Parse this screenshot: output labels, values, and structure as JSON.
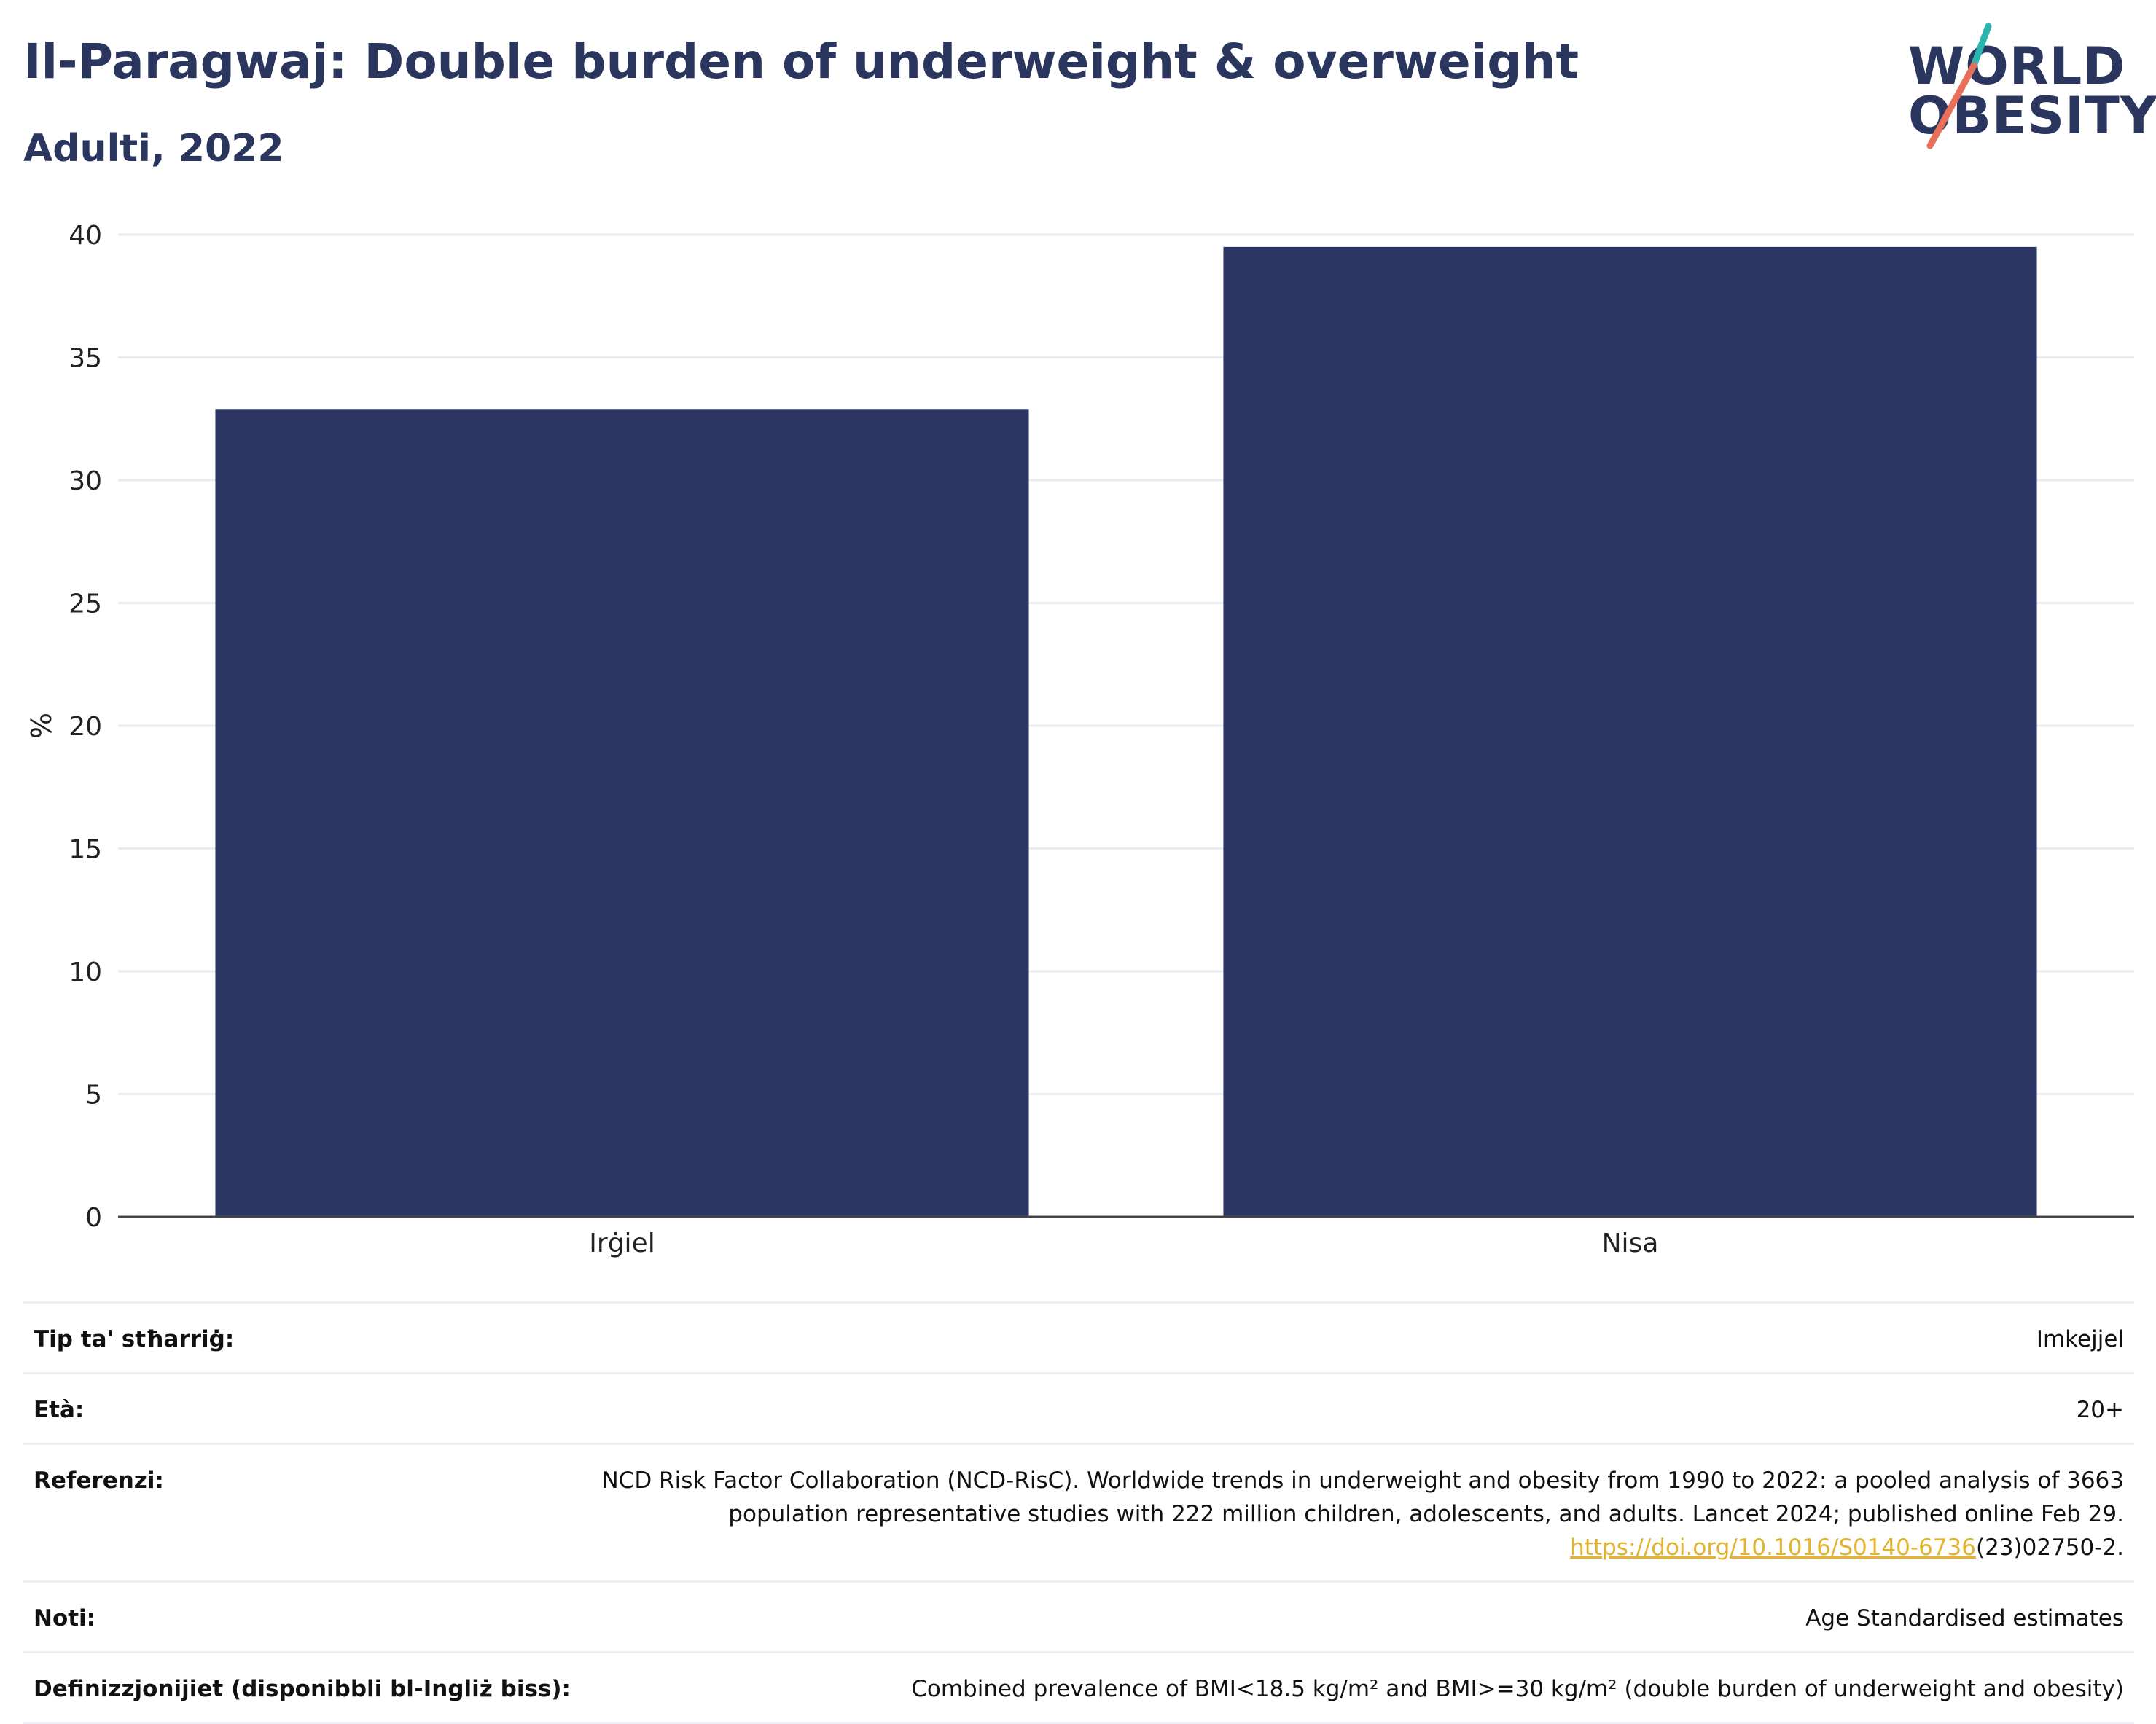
{
  "header": {
    "title": "Il-Paragwaj: Double burden of underweight & overweight",
    "subtitle": "Adulti, 2022"
  },
  "logo": {
    "line1": "WORLD",
    "line2": "OBESITY",
    "stroke_colors": [
      "#2cb5b0",
      "#e8705a"
    ]
  },
  "chart_data": {
    "type": "bar",
    "categories": [
      "Irġiel",
      "Nisa"
    ],
    "values": [
      32.9,
      39.5
    ],
    "ylabel": "%",
    "ylim": [
      0,
      40
    ],
    "yticks": [
      0,
      5,
      10,
      15,
      20,
      25,
      30,
      35,
      40
    ],
    "grid": true,
    "bar_color": "#2b3663"
  },
  "metadata": {
    "rows": [
      {
        "label": "Tip ta' stħarriġ:",
        "value": "Imkejjel"
      },
      {
        "label": "Età:",
        "value": "20+"
      },
      {
        "label": "Referenzi:",
        "value": "NCD Risk Factor Collaboration (NCD-RisC). Worldwide trends in underweight and obesity from 1990 to 2022: a pooled analysis of 3663 population representative studies with 222 million children, adolescents, and adults. Lancet 2024; published online Feb 29.",
        "link": "https://doi.org/10.1016/S0140-6736",
        "link_suffix": "(23)02750-2."
      },
      {
        "label": "Noti:",
        "value": "Age Standardised estimates"
      },
      {
        "label": "Definizzjonijiet (disponibbli bl-Ingliż biss):",
        "value": "Combined prevalence of BMI<18.5 kg/m² and BMI>=30 kg/m² (double burden of underweight and obesity)"
      }
    ]
  }
}
